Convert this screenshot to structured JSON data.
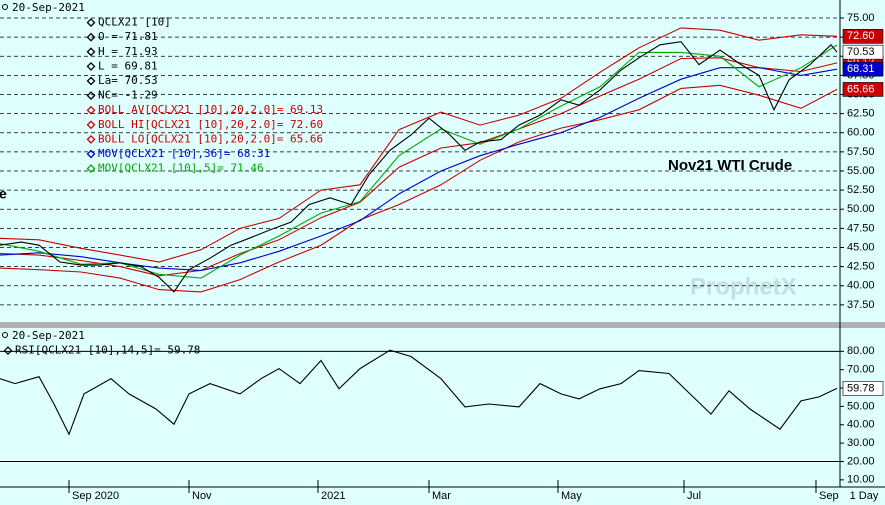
{
  "chart_data": [
    {
      "type": "line",
      "info": [
        "20-Sep-2021",
        "QCLX21 [10]",
        "O = 71.81",
        "H = 71.93",
        "L = 69.81",
        "La= 70.53",
        "NC= -1.29"
      ],
      "annotation": "Nov21 WTI Crude",
      "watermark": "ProphetX",
      "left_fragment": "e",
      "xlim": [
        0,
        280
      ],
      "ylim": [
        35.26,
        77.35
      ],
      "yticks": [
        {
          "value": 37.5,
          "label": "37.50"
        },
        {
          "value": 40,
          "label": "40.00"
        },
        {
          "value": 42.5,
          "label": "42.50"
        },
        {
          "value": 45,
          "label": "45.00"
        },
        {
          "value": 47.5,
          "label": "47.50"
        },
        {
          "value": 50,
          "label": "50.00"
        },
        {
          "value": 52.5,
          "label": "52.50"
        },
        {
          "value": 55,
          "label": "55.00"
        },
        {
          "value": 57.5,
          "label": "57.50"
        },
        {
          "value": 60,
          "label": "60.00"
        },
        {
          "value": 62.5,
          "label": "62.50"
        },
        {
          "value": 65,
          "label": "65.00"
        },
        {
          "value": 67.5,
          "label": "67.50"
        },
        {
          "value": 70,
          "label": "70.00"
        },
        {
          "value": 72.5,
          "label": "72.50"
        },
        {
          "value": 75,
          "label": "75.00"
        }
      ],
      "grid": true,
      "x": [
        0,
        13,
        27,
        40,
        53,
        67,
        80,
        93,
        107,
        120,
        133,
        147,
        160,
        173,
        187,
        200,
        213,
        227,
        240,
        253,
        267,
        279
      ],
      "series": [
        {
          "name": "BOLL AV[QCLX21 [10],20,2.0]= 69.13",
          "color": "#cc0000",
          "tag_fill": "#cc0000",
          "legend": true,
          "values": [
            44.2,
            44.0,
            43.3,
            42.5,
            41.3,
            42.0,
            44.2,
            46.0,
            48.9,
            50.9,
            55.5,
            58.0,
            58.7,
            60.5,
            62.5,
            64.8,
            67.0,
            69.7,
            69.8,
            68.5,
            68.0,
            69.13
          ],
          "value_labels": [
            null,
            null,
            null,
            null,
            null,
            null,
            null,
            null,
            null,
            null,
            null,
            null,
            null,
            null,
            null,
            null,
            null,
            null,
            null,
            null,
            null,
            "69.13"
          ]
        },
        {
          "name": "BOLL HI[QCLX21 [10],20,2.0]= 72.60",
          "color": "#cc0000",
          "tag_fill": "#cc0000",
          "legend": true,
          "values": [
            46.2,
            46.0,
            44.9,
            44.0,
            43.1,
            44.7,
            47.5,
            48.8,
            52.5,
            53.2,
            60.4,
            62.7,
            61.0,
            62.3,
            64.5,
            67.9,
            71.1,
            73.7,
            73.4,
            72.1,
            72.8,
            72.6
          ],
          "value_labels": [
            null,
            null,
            null,
            null,
            null,
            null,
            null,
            null,
            null,
            null,
            null,
            null,
            null,
            null,
            null,
            null,
            null,
            null,
            null,
            null,
            null,
            "72.60"
          ]
        },
        {
          "name": "BOLL LO[QCLX21 [10],20,2.0]= 65.66",
          "color": "#cc0000",
          "tag_fill": "#cc0000",
          "legend": true,
          "values": [
            42.3,
            42.1,
            41.8,
            41.0,
            39.5,
            39.2,
            40.8,
            43.1,
            45.3,
            48.6,
            50.6,
            53.2,
            56.4,
            58.8,
            60.6,
            61.7,
            63.0,
            65.8,
            66.2,
            64.9,
            63.2,
            65.66
          ],
          "value_labels": [
            null,
            null,
            null,
            null,
            null,
            null,
            null,
            null,
            null,
            null,
            null,
            null,
            null,
            null,
            null,
            null,
            null,
            null,
            null,
            null,
            null,
            "65.66"
          ]
        },
        {
          "name": "MOV[QCLX21 [10],36]= 68.31",
          "color": "#0000cc",
          "tag_fill": "#0000cc",
          "legend": true,
          "values": [
            44.0,
            44.3,
            43.8,
            43.0,
            42.3,
            42.0,
            43.0,
            44.5,
            46.5,
            48.5,
            52.0,
            55.0,
            57.0,
            58.5,
            60.0,
            62.0,
            64.5,
            67.0,
            68.5,
            68.5,
            67.5,
            68.31
          ],
          "value_labels": [
            null,
            null,
            null,
            null,
            null,
            null,
            null,
            null,
            null,
            null,
            null,
            null,
            null,
            null,
            null,
            null,
            null,
            null,
            null,
            null,
            null,
            "68.31"
          ]
        },
        {
          "name": "MOV[QCLX21 [10],5]= 71.46",
          "color": "#00aa00",
          "legend": true,
          "values": [
            45.5,
            44.5,
            42.8,
            43.0,
            41.5,
            41.0,
            44.0,
            46.5,
            49.5,
            51.0,
            57.0,
            60.5,
            58.5,
            60.5,
            63.5,
            66.0,
            70.5,
            70.5,
            70.0,
            66.0,
            68.5,
            71.46
          ]
        },
        {
          "name": "QCLX21 [10]",
          "color": "#000000",
          "tag_fill": "#ffffff",
          "legend": false,
          "x": [
            0,
            7,
            13,
            20,
            27,
            33,
            40,
            47,
            53,
            58,
            63,
            70,
            77,
            83,
            90,
            97,
            103,
            110,
            117,
            123,
            130,
            137,
            143,
            150,
            155,
            160,
            167,
            173,
            180,
            187,
            193,
            200,
            207,
            213,
            220,
            227,
            233,
            240,
            247,
            253,
            258,
            263,
            270,
            277,
            279
          ],
          "values": [
            45.3,
            45.7,
            45.3,
            43.1,
            42.7,
            42.7,
            43.0,
            42.5,
            41.1,
            39.2,
            42.1,
            43.6,
            45.3,
            46.2,
            47.3,
            48.3,
            50.6,
            51.5,
            50.6,
            54.5,
            57.7,
            59.7,
            61.9,
            59.7,
            57.7,
            58.8,
            59.1,
            61.0,
            62.3,
            64.3,
            63.6,
            65.6,
            68.2,
            69.8,
            71.5,
            71.9,
            68.9,
            70.8,
            68.9,
            67.5,
            63.0,
            66.9,
            68.9,
            71.5,
            70.53
          ],
          "value_labels": [
            null,
            null,
            null,
            null,
            null,
            null,
            null,
            null,
            null,
            null,
            null,
            null,
            null,
            null,
            null,
            null,
            null,
            null,
            null,
            null,
            null,
            null,
            null,
            null,
            null,
            null,
            null,
            null,
            null,
            null,
            null,
            null,
            null,
            null,
            null,
            null,
            null,
            null,
            null,
            null,
            null,
            null,
            null,
            null,
            "70.53"
          ]
        }
      ]
    },
    {
      "type": "line",
      "info": [
        "20-Sep-2021"
      ],
      "xlim": [
        0,
        280
      ],
      "xticks": [
        {
          "value": 23,
          "label": "Sep 2020"
        },
        {
          "value": 63,
          "label": "Nov"
        },
        {
          "value": 106,
          "label": "2021"
        },
        {
          "value": 143,
          "label": "Mar"
        },
        {
          "value": 186,
          "label": "May"
        },
        {
          "value": 228,
          "label": "Jul"
        },
        {
          "value": 272,
          "label": "Sep"
        }
      ],
      "interval": "1 Day",
      "ylim": [
        6.1,
        92.7
      ],
      "yticks": [
        {
          "value": 10,
          "label": "10.00"
        },
        {
          "value": 20,
          "label": "20.00"
        },
        {
          "value": 30,
          "label": "30.00"
        },
        {
          "value": 40,
          "label": "40.00"
        },
        {
          "value": 50,
          "label": "50.00"
        },
        {
          "value": 60,
          "label": "60.00"
        },
        {
          "value": 70,
          "label": "70.00"
        },
        {
          "value": 80,
          "label": "80.00"
        }
      ],
      "hlines": [
        80,
        20
      ],
      "x": [
        0,
        5,
        13,
        18,
        23,
        28,
        37,
        43,
        52,
        58,
        63,
        70,
        80,
        87,
        93,
        100,
        107,
        113,
        120,
        130,
        137,
        147,
        155,
        163,
        173,
        180,
        187,
        193,
        200,
        207,
        213,
        223,
        230,
        237,
        243,
        250,
        260,
        267,
        273,
        279
      ],
      "series": [
        {
          "name": "RSI[QCLX21 [10],14,5]= 59.78",
          "color": "#000000",
          "tag_fill": "#ffffff",
          "legend": true,
          "values": [
            65.1,
            62.4,
            66.2,
            51.3,
            34.8,
            56.8,
            65.1,
            56.8,
            48.6,
            40.3,
            56.8,
            62.4,
            56.8,
            65.1,
            70.6,
            62.4,
            75.0,
            59.6,
            70.6,
            80.6,
            77.2,
            65.1,
            49.7,
            51.3,
            49.7,
            62.4,
            56.8,
            54.1,
            59.6,
            62.4,
            69.5,
            67.9,
            56.8,
            45.8,
            58.5,
            48.6,
            37.6,
            53.0,
            55.2,
            59.78
          ],
          "value_labels": [
            null,
            null,
            null,
            null,
            null,
            null,
            null,
            null,
            null,
            null,
            null,
            null,
            null,
            null,
            null,
            null,
            null,
            null,
            null,
            null,
            null,
            null,
            null,
            null,
            null,
            null,
            null,
            null,
            null,
            null,
            null,
            null,
            null,
            null,
            null,
            null,
            null,
            null,
            null,
            "59.78"
          ]
        }
      ]
    }
  ]
}
